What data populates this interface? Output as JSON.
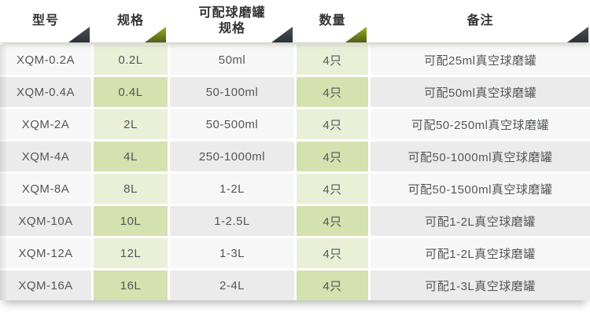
{
  "header": {
    "columns": [
      {
        "label": "型号",
        "triangle": "dark"
      },
      {
        "label": "规格",
        "triangle": "olive"
      },
      {
        "label": "可配球磨罐\n规格",
        "triangle": "dark"
      },
      {
        "label": "数量",
        "triangle": "olive"
      },
      {
        "label": "备注",
        "triangle": "dark"
      }
    ]
  },
  "rows": [
    {
      "model": "XQM-0.2A",
      "spec": "0.2L",
      "jar_spec": "50ml",
      "qty": "4只",
      "note": "可配25ml真空球磨罐"
    },
    {
      "model": "XQM-0.4A",
      "spec": "0.4L",
      "jar_spec": "50-100ml",
      "qty": "4只",
      "note": "可配50ml真空球磨罐"
    },
    {
      "model": "XQM-2A",
      "spec": "2L",
      "jar_spec": "50-500ml",
      "qty": "4只",
      "note": "可配50-250ml真空球磨罐"
    },
    {
      "model": "XQM-4A",
      "spec": "4L",
      "jar_spec": "250-1000ml",
      "qty": "4只",
      "note": "可配50-1000ml真空球磨罐"
    },
    {
      "model": "XQM-8A",
      "spec": "8L",
      "jar_spec": "1-2L",
      "qty": "4只",
      "note": "可配50-1500ml真空球磨罐"
    },
    {
      "model": "XQM-10A",
      "spec": "10L",
      "jar_spec": "1-2.5L",
      "qty": "4只",
      "note": "可配1-2L真空球磨罐"
    },
    {
      "model": "XQM-12A",
      "spec": "12L",
      "jar_spec": "1-3L",
      "qty": "4只",
      "note": "可配1-2L真空球磨罐"
    },
    {
      "model": "XQM-16A",
      "spec": "16L",
      "jar_spec": "2-4L",
      "qty": "4只",
      "note": "可配1-3L真空球磨罐"
    }
  ],
  "colors": {
    "row_light": "#f7f7f7",
    "row_gray": "#ebebeb",
    "green_light": "#eaf0d8",
    "green_dark": "#d5e1ae",
    "triangle_dark": "#2b3136",
    "triangle_olive": "#8a9b1f",
    "header_text": "#333333",
    "body_text": "#54575a"
  }
}
